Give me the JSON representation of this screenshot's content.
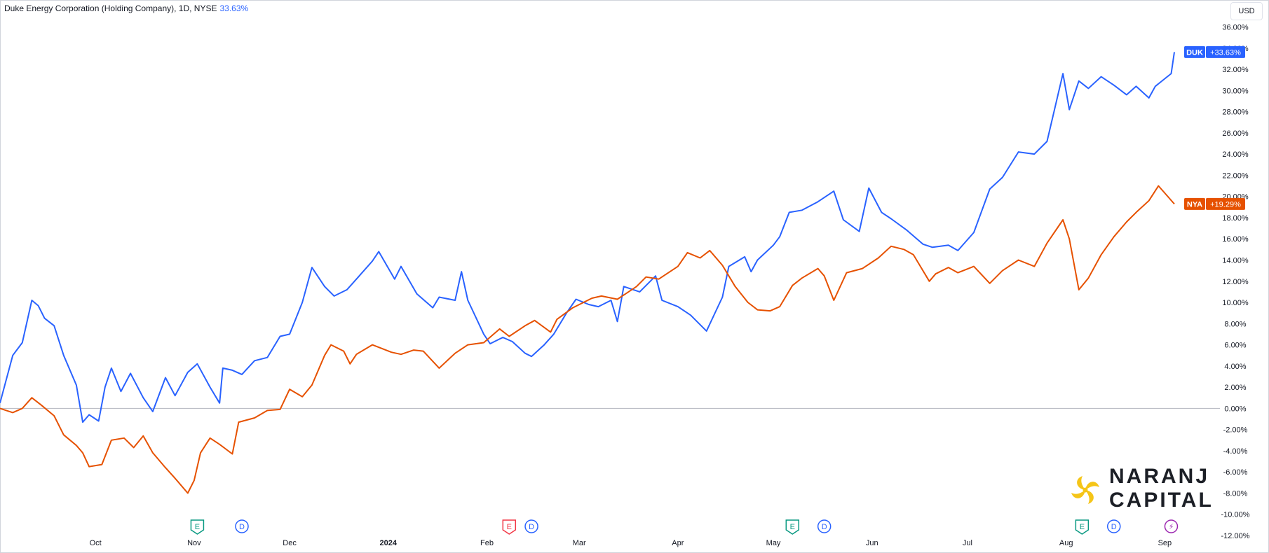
{
  "header": {
    "title": "Duke Energy Corporation (Holding Company), 1D, NYSE",
    "change": "33.63%",
    "currency": "USD"
  },
  "colors": {
    "duk": "#2962ff",
    "nya": "#e65100",
    "zero_line": "#b2b5be",
    "logo_yellow": "#f5c518"
  },
  "logo": {
    "line1": "NARANJ",
    "line2": "CAPITAL"
  },
  "chart_data": {
    "type": "line",
    "title": "Duke Energy Corporation (Holding Company), 1D, NYSE",
    "x_range": [
      "2023-09-01",
      "2024-09-04"
    ],
    "x_tick_labels": [
      {
        "date": "2023-10-01",
        "label": "Oct"
      },
      {
        "date": "2023-11-01",
        "label": "Nov"
      },
      {
        "date": "2023-12-01",
        "label": "Dec"
      },
      {
        "date": "2024-01-01",
        "label": "2024"
      },
      {
        "date": "2024-02-01",
        "label": "Feb"
      },
      {
        "date": "2024-03-01",
        "label": "Mar"
      },
      {
        "date": "2024-04-01",
        "label": "Apr"
      },
      {
        "date": "2024-05-01",
        "label": "May"
      },
      {
        "date": "2024-06-01",
        "label": "Jun"
      },
      {
        "date": "2024-07-01",
        "label": "Jul"
      },
      {
        "date": "2024-08-01",
        "label": "Aug"
      },
      {
        "date": "2024-09-01",
        "label": "Sep"
      }
    ],
    "ylim": [
      -12,
      36
    ],
    "y_ticks": [
      36,
      34,
      32,
      30,
      28,
      26,
      24,
      22,
      20,
      18,
      16,
      14,
      12,
      10,
      8,
      6,
      4,
      2,
      0,
      -2,
      -4,
      -6,
      -8,
      -10,
      -12
    ],
    "y_unit": "%",
    "series": [
      {
        "name": "DUK",
        "last_label": "+33.63%",
        "points": [
          {
            "x": "2023-09-01",
            "y": 0.5
          },
          {
            "x": "2023-09-05",
            "y": 5.0
          },
          {
            "x": "2023-09-08",
            "y": 6.2
          },
          {
            "x": "2023-09-11",
            "y": 10.2
          },
          {
            "x": "2023-09-13",
            "y": 9.7
          },
          {
            "x": "2023-09-15",
            "y": 8.5
          },
          {
            "x": "2023-09-18",
            "y": 7.8
          },
          {
            "x": "2023-09-21",
            "y": 5.0
          },
          {
            "x": "2023-09-25",
            "y": 2.2
          },
          {
            "x": "2023-09-27",
            "y": -1.3
          },
          {
            "x": "2023-09-29",
            "y": -0.6
          },
          {
            "x": "2023-10-02",
            "y": -1.2
          },
          {
            "x": "2023-10-04",
            "y": 2.0
          },
          {
            "x": "2023-10-06",
            "y": 3.8
          },
          {
            "x": "2023-10-09",
            "y": 1.6
          },
          {
            "x": "2023-10-12",
            "y": 3.3
          },
          {
            "x": "2023-10-16",
            "y": 1.0
          },
          {
            "x": "2023-10-19",
            "y": -0.3
          },
          {
            "x": "2023-10-23",
            "y": 2.9
          },
          {
            "x": "2023-10-26",
            "y": 1.2
          },
          {
            "x": "2023-10-30",
            "y": 3.4
          },
          {
            "x": "2023-11-02",
            "y": 4.2
          },
          {
            "x": "2023-11-06",
            "y": 2.0
          },
          {
            "x": "2023-11-09",
            "y": 0.5
          },
          {
            "x": "2023-11-10",
            "y": 3.8
          },
          {
            "x": "2023-11-13",
            "y": 3.6
          },
          {
            "x": "2023-11-16",
            "y": 3.2
          },
          {
            "x": "2023-11-20",
            "y": 4.5
          },
          {
            "x": "2023-11-24",
            "y": 4.8
          },
          {
            "x": "2023-11-28",
            "y": 6.8
          },
          {
            "x": "2023-12-01",
            "y": 7.0
          },
          {
            "x": "2023-12-05",
            "y": 10.0
          },
          {
            "x": "2023-12-08",
            "y": 13.3
          },
          {
            "x": "2023-12-12",
            "y": 11.5
          },
          {
            "x": "2023-12-15",
            "y": 10.6
          },
          {
            "x": "2023-12-19",
            "y": 11.2
          },
          {
            "x": "2023-12-22",
            "y": 12.2
          },
          {
            "x": "2023-12-27",
            "y": 13.9
          },
          {
            "x": "2023-12-29",
            "y": 14.8
          },
          {
            "x": "2024-01-03",
            "y": 12.2
          },
          {
            "x": "2024-01-05",
            "y": 13.4
          },
          {
            "x": "2024-01-10",
            "y": 10.8
          },
          {
            "x": "2024-01-15",
            "y": 9.5
          },
          {
            "x": "2024-01-17",
            "y": 10.5
          },
          {
            "x": "2024-01-22",
            "y": 10.2
          },
          {
            "x": "2024-01-24",
            "y": 12.9
          },
          {
            "x": "2024-01-26",
            "y": 10.2
          },
          {
            "x": "2024-01-31",
            "y": 7.0
          },
          {
            "x": "2024-02-02",
            "y": 6.1
          },
          {
            "x": "2024-02-06",
            "y": 6.7
          },
          {
            "x": "2024-02-09",
            "y": 6.3
          },
          {
            "x": "2024-02-13",
            "y": 5.2
          },
          {
            "x": "2024-02-15",
            "y": 4.9
          },
          {
            "x": "2024-02-19",
            "y": 6.0
          },
          {
            "x": "2024-02-22",
            "y": 7.0
          },
          {
            "x": "2024-02-26",
            "y": 9.0
          },
          {
            "x": "2024-02-29",
            "y": 10.3
          },
          {
            "x": "2024-03-04",
            "y": 9.8
          },
          {
            "x": "2024-03-07",
            "y": 9.6
          },
          {
            "x": "2024-03-11",
            "y": 10.2
          },
          {
            "x": "2024-03-13",
            "y": 8.2
          },
          {
            "x": "2024-03-15",
            "y": 11.5
          },
          {
            "x": "2024-03-20",
            "y": 11.0
          },
          {
            "x": "2024-03-25",
            "y": 12.5
          },
          {
            "x": "2024-03-27",
            "y": 10.2
          },
          {
            "x": "2024-04-01",
            "y": 9.6
          },
          {
            "x": "2024-04-05",
            "y": 8.8
          },
          {
            "x": "2024-04-10",
            "y": 7.3
          },
          {
            "x": "2024-04-15",
            "y": 10.5
          },
          {
            "x": "2024-04-17",
            "y": 13.4
          },
          {
            "x": "2024-04-22",
            "y": 14.3
          },
          {
            "x": "2024-04-24",
            "y": 12.9
          },
          {
            "x": "2024-04-26",
            "y": 14.0
          },
          {
            "x": "2024-05-01",
            "y": 15.4
          },
          {
            "x": "2024-05-03",
            "y": 16.2
          },
          {
            "x": "2024-05-06",
            "y": 18.5
          },
          {
            "x": "2024-05-10",
            "y": 18.7
          },
          {
            "x": "2024-05-15",
            "y": 19.5
          },
          {
            "x": "2024-05-20",
            "y": 20.5
          },
          {
            "x": "2024-05-23",
            "y": 17.8
          },
          {
            "x": "2024-05-28",
            "y": 16.7
          },
          {
            "x": "2024-05-31",
            "y": 20.8
          },
          {
            "x": "2024-06-04",
            "y": 18.5
          },
          {
            "x": "2024-06-07",
            "y": 17.9
          },
          {
            "x": "2024-06-12",
            "y": 16.8
          },
          {
            "x": "2024-06-17",
            "y": 15.5
          },
          {
            "x": "2024-06-20",
            "y": 15.2
          },
          {
            "x": "2024-06-25",
            "y": 15.4
          },
          {
            "x": "2024-06-28",
            "y": 14.9
          },
          {
            "x": "2024-07-03",
            "y": 16.6
          },
          {
            "x": "2024-07-08",
            "y": 20.7
          },
          {
            "x": "2024-07-12",
            "y": 21.8
          },
          {
            "x": "2024-07-17",
            "y": 24.2
          },
          {
            "x": "2024-07-22",
            "y": 24.0
          },
          {
            "x": "2024-07-26",
            "y": 25.2
          },
          {
            "x": "2024-07-31",
            "y": 31.6
          },
          {
            "x": "2024-08-02",
            "y": 28.2
          },
          {
            "x": "2024-08-05",
            "y": 30.9
          },
          {
            "x": "2024-08-08",
            "y": 30.2
          },
          {
            "x": "2024-08-12",
            "y": 31.3
          },
          {
            "x": "2024-08-16",
            "y": 30.5
          },
          {
            "x": "2024-08-20",
            "y": 29.6
          },
          {
            "x": "2024-08-23",
            "y": 30.4
          },
          {
            "x": "2024-08-27",
            "y": 29.3
          },
          {
            "x": "2024-08-29",
            "y": 30.4
          },
          {
            "x": "2024-09-03",
            "y": 31.6
          },
          {
            "x": "2024-09-04",
            "y": 33.63
          }
        ]
      },
      {
        "name": "NYA",
        "last_label": "+19.29%",
        "points": [
          {
            "x": "2023-09-01",
            "y": 0.0
          },
          {
            "x": "2023-09-05",
            "y": -0.4
          },
          {
            "x": "2023-09-08",
            "y": 0.0
          },
          {
            "x": "2023-09-11",
            "y": 1.0
          },
          {
            "x": "2023-09-14",
            "y": 0.3
          },
          {
            "x": "2023-09-18",
            "y": -0.7
          },
          {
            "x": "2023-09-21",
            "y": -2.5
          },
          {
            "x": "2023-09-25",
            "y": -3.5
          },
          {
            "x": "2023-09-27",
            "y": -4.2
          },
          {
            "x": "2023-09-29",
            "y": -5.5
          },
          {
            "x": "2023-10-03",
            "y": -5.3
          },
          {
            "x": "2023-10-06",
            "y": -3.0
          },
          {
            "x": "2023-10-10",
            "y": -2.8
          },
          {
            "x": "2023-10-13",
            "y": -3.7
          },
          {
            "x": "2023-10-16",
            "y": -2.6
          },
          {
            "x": "2023-10-19",
            "y": -4.2
          },
          {
            "x": "2023-10-23",
            "y": -5.6
          },
          {
            "x": "2023-10-26",
            "y": -6.6
          },
          {
            "x": "2023-10-30",
            "y": -8.0
          },
          {
            "x": "2023-11-01",
            "y": -6.8
          },
          {
            "x": "2023-11-03",
            "y": -4.2
          },
          {
            "x": "2023-11-06",
            "y": -2.8
          },
          {
            "x": "2023-11-09",
            "y": -3.4
          },
          {
            "x": "2023-11-13",
            "y": -4.3
          },
          {
            "x": "2023-11-15",
            "y": -1.3
          },
          {
            "x": "2023-11-20",
            "y": -0.9
          },
          {
            "x": "2023-11-24",
            "y": -0.2
          },
          {
            "x": "2023-11-28",
            "y": -0.1
          },
          {
            "x": "2023-12-01",
            "y": 1.8
          },
          {
            "x": "2023-12-05",
            "y": 1.1
          },
          {
            "x": "2023-12-08",
            "y": 2.2
          },
          {
            "x": "2023-12-12",
            "y": 5.0
          },
          {
            "x": "2023-12-14",
            "y": 6.0
          },
          {
            "x": "2023-12-18",
            "y": 5.4
          },
          {
            "x": "2023-12-20",
            "y": 4.2
          },
          {
            "x": "2023-12-22",
            "y": 5.1
          },
          {
            "x": "2023-12-27",
            "y": 6.0
          },
          {
            "x": "2024-01-02",
            "y": 5.3
          },
          {
            "x": "2024-01-05",
            "y": 5.1
          },
          {
            "x": "2024-01-09",
            "y": 5.5
          },
          {
            "x": "2024-01-12",
            "y": 5.4
          },
          {
            "x": "2024-01-17",
            "y": 3.8
          },
          {
            "x": "2024-01-22",
            "y": 5.2
          },
          {
            "x": "2024-01-26",
            "y": 6.0
          },
          {
            "x": "2024-01-31",
            "y": 6.2
          },
          {
            "x": "2024-02-05",
            "y": 7.5
          },
          {
            "x": "2024-02-08",
            "y": 6.8
          },
          {
            "x": "2024-02-13",
            "y": 7.8
          },
          {
            "x": "2024-02-16",
            "y": 8.3
          },
          {
            "x": "2024-02-21",
            "y": 7.2
          },
          {
            "x": "2024-02-23",
            "y": 8.4
          },
          {
            "x": "2024-02-28",
            "y": 9.5
          },
          {
            "x": "2024-03-05",
            "y": 10.4
          },
          {
            "x": "2024-03-08",
            "y": 10.6
          },
          {
            "x": "2024-03-13",
            "y": 10.3
          },
          {
            "x": "2024-03-19",
            "y": 11.5
          },
          {
            "x": "2024-03-22",
            "y": 12.4
          },
          {
            "x": "2024-03-26",
            "y": 12.2
          },
          {
            "x": "2024-04-01",
            "y": 13.4
          },
          {
            "x": "2024-04-04",
            "y": 14.7
          },
          {
            "x": "2024-04-08",
            "y": 14.2
          },
          {
            "x": "2024-04-11",
            "y": 14.9
          },
          {
            "x": "2024-04-15",
            "y": 13.5
          },
          {
            "x": "2024-04-19",
            "y": 11.5
          },
          {
            "x": "2024-04-23",
            "y": 10.0
          },
          {
            "x": "2024-04-26",
            "y": 9.3
          },
          {
            "x": "2024-04-30",
            "y": 9.2
          },
          {
            "x": "2024-05-03",
            "y": 9.6
          },
          {
            "x": "2024-05-07",
            "y": 11.6
          },
          {
            "x": "2024-05-10",
            "y": 12.3
          },
          {
            "x": "2024-05-15",
            "y": 13.2
          },
          {
            "x": "2024-05-17",
            "y": 12.5
          },
          {
            "x": "2024-05-20",
            "y": 10.2
          },
          {
            "x": "2024-05-24",
            "y": 12.8
          },
          {
            "x": "2024-05-29",
            "y": 13.2
          },
          {
            "x": "2024-06-03",
            "y": 14.2
          },
          {
            "x": "2024-06-07",
            "y": 15.3
          },
          {
            "x": "2024-06-11",
            "y": 15.0
          },
          {
            "x": "2024-06-14",
            "y": 14.5
          },
          {
            "x": "2024-06-19",
            "y": 12.0
          },
          {
            "x": "2024-06-21",
            "y": 12.7
          },
          {
            "x": "2024-06-25",
            "y": 13.3
          },
          {
            "x": "2024-06-28",
            "y": 12.8
          },
          {
            "x": "2024-07-03",
            "y": 13.4
          },
          {
            "x": "2024-07-08",
            "y": 11.8
          },
          {
            "x": "2024-07-12",
            "y": 13.0
          },
          {
            "x": "2024-07-17",
            "y": 14.0
          },
          {
            "x": "2024-07-22",
            "y": 13.4
          },
          {
            "x": "2024-07-26",
            "y": 15.6
          },
          {
            "x": "2024-07-31",
            "y": 17.8
          },
          {
            "x": "2024-08-02",
            "y": 16.0
          },
          {
            "x": "2024-08-05",
            "y": 11.2
          },
          {
            "x": "2024-08-08",
            "y": 12.3
          },
          {
            "x": "2024-08-12",
            "y": 14.5
          },
          {
            "x": "2024-08-16",
            "y": 16.2
          },
          {
            "x": "2024-08-20",
            "y": 17.6
          },
          {
            "x": "2024-08-23",
            "y": 18.5
          },
          {
            "x": "2024-08-27",
            "y": 19.6
          },
          {
            "x": "2024-08-30",
            "y": 21.0
          },
          {
            "x": "2024-09-04",
            "y": 19.29
          }
        ]
      }
    ],
    "event_markers": [
      {
        "date": "2023-11-02",
        "symbol": "E",
        "kind": "earnings",
        "color": "#089981"
      },
      {
        "date": "2023-11-16",
        "symbol": "D",
        "kind": "dividend",
        "color": "#2962ff"
      },
      {
        "date": "2024-02-08",
        "symbol": "E",
        "kind": "earnings",
        "color": "#f23645"
      },
      {
        "date": "2024-02-15",
        "symbol": "D",
        "kind": "dividend",
        "color": "#2962ff"
      },
      {
        "date": "2024-05-07",
        "symbol": "E",
        "kind": "earnings",
        "color": "#089981"
      },
      {
        "date": "2024-05-17",
        "symbol": "D",
        "kind": "dividend",
        "color": "#2962ff"
      },
      {
        "date": "2024-08-06",
        "symbol": "E",
        "kind": "earnings",
        "color": "#089981"
      },
      {
        "date": "2024-08-16",
        "symbol": "D",
        "kind": "dividend",
        "color": "#2962ff"
      },
      {
        "date": "2024-09-03",
        "symbol": "⚡",
        "kind": "split",
        "color": "#9c27b0"
      }
    ],
    "zero_line": true,
    "grid": false,
    "legend": "price-scale labels at right"
  }
}
